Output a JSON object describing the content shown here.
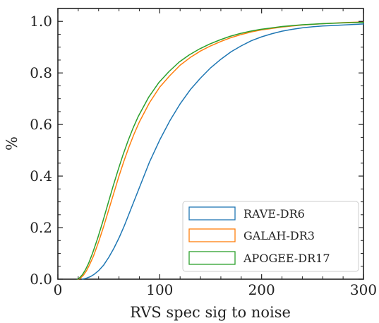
{
  "chart_data": {
    "type": "line",
    "title": "",
    "xlabel": "RVS spec sig to noise",
    "ylabel": "%",
    "xlim": [
      0,
      300
    ],
    "ylim": [
      0,
      1.05
    ],
    "xticks": [
      0,
      100,
      200,
      300
    ],
    "xtick_labels": [
      "0",
      "100",
      "200",
      "300"
    ],
    "yticks": [
      0.0,
      0.2,
      0.4,
      0.6,
      0.8,
      1.0
    ],
    "ytick_labels": [
      "0.0",
      "0.2",
      "0.4",
      "0.6",
      "0.8",
      "1.0"
    ],
    "grid": false,
    "legend_position": "bottom-right",
    "series": [
      {
        "name": "RAVE-DR6",
        "color": "#1f77b4",
        "x": [
          24,
          28,
          32,
          36,
          40,
          45,
          50,
          55,
          60,
          65,
          70,
          75,
          80,
          85,
          90,
          100,
          110,
          120,
          130,
          140,
          150,
          160,
          170,
          180,
          190,
          200,
          210,
          220,
          230,
          240,
          250,
          260,
          270,
          280,
          290,
          300
        ],
        "y": [
          0.0,
          0.004,
          0.01,
          0.02,
          0.033,
          0.055,
          0.085,
          0.12,
          0.16,
          0.205,
          0.255,
          0.305,
          0.355,
          0.405,
          0.455,
          0.54,
          0.615,
          0.68,
          0.735,
          0.78,
          0.82,
          0.853,
          0.882,
          0.905,
          0.925,
          0.94,
          0.952,
          0.962,
          0.969,
          0.975,
          0.979,
          0.982,
          0.984,
          0.986,
          0.988,
          0.99
        ]
      },
      {
        "name": "GALAH-DR3",
        "color": "#ff7f0e",
        "x": [
          20,
          22,
          25,
          28,
          31,
          35,
          40,
          45,
          50,
          55,
          60,
          65,
          70,
          75,
          80,
          90,
          100,
          110,
          120,
          130,
          140,
          150,
          160,
          170,
          180,
          190,
          200,
          220,
          240,
          260,
          280,
          300
        ],
        "y": [
          0.0,
          0.004,
          0.015,
          0.032,
          0.055,
          0.09,
          0.145,
          0.205,
          0.27,
          0.335,
          0.4,
          0.46,
          0.515,
          0.565,
          0.61,
          0.685,
          0.745,
          0.79,
          0.83,
          0.86,
          0.885,
          0.905,
          0.922,
          0.937,
          0.949,
          0.959,
          0.967,
          0.978,
          0.986,
          0.991,
          0.995,
          0.998
        ]
      },
      {
        "name": "APOGEE-DR17",
        "color": "#2ca02c",
        "x": [
          19,
          21,
          24,
          27,
          30,
          34,
          39,
          44,
          49,
          54,
          59,
          64,
          69,
          74,
          79,
          89,
          99,
          109,
          119,
          129,
          139,
          149,
          159,
          169,
          179,
          189,
          199,
          220,
          240,
          260,
          280,
          300
        ],
        "y": [
          0.0,
          0.004,
          0.017,
          0.036,
          0.06,
          0.1,
          0.158,
          0.222,
          0.29,
          0.358,
          0.422,
          0.483,
          0.538,
          0.588,
          0.632,
          0.705,
          0.762,
          0.805,
          0.842,
          0.87,
          0.893,
          0.912,
          0.928,
          0.942,
          0.953,
          0.962,
          0.969,
          0.98,
          0.987,
          0.991,
          0.994,
          0.996
        ]
      }
    ]
  }
}
